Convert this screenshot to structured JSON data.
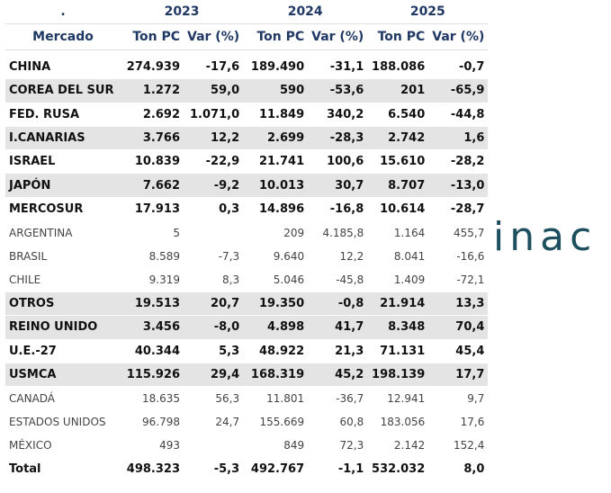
{
  "logo": "inac",
  "table": {
    "years": [
      ".",
      "2023",
      "2024",
      "2025"
    ],
    "columns": [
      "Mercado",
      "Ton PC",
      "Var (%)",
      "Ton PC",
      "Var (%)",
      "Ton PC",
      "Var (%)"
    ],
    "rows": [
      {
        "cells": [
          "CHINA",
          "274.939",
          "-17,6",
          "189.490",
          "-31,1",
          "188.086",
          "-0,7"
        ],
        "bold": true,
        "shaded": false
      },
      {
        "cells": [
          "COREA DEL SUR",
          "1.272",
          "59,0",
          "590",
          "-53,6",
          "201",
          "-65,9"
        ],
        "bold": true,
        "shaded": true
      },
      {
        "cells": [
          "FED. RUSA",
          "2.692",
          "1.071,0",
          "11.849",
          "340,2",
          "6.540",
          "-44,8"
        ],
        "bold": true,
        "shaded": false
      },
      {
        "cells": [
          "I.CANARIAS",
          "3.766",
          "12,2",
          "2.699",
          "-28,3",
          "2.742",
          "1,6"
        ],
        "bold": true,
        "shaded": true
      },
      {
        "cells": [
          "ISRAEL",
          "10.839",
          "-22,9",
          "21.741",
          "100,6",
          "15.610",
          "-28,2"
        ],
        "bold": true,
        "shaded": false
      },
      {
        "cells": [
          "JAPÓN",
          "7.662",
          "-9,2",
          "10.013",
          "30,7",
          "8.707",
          "-13,0"
        ],
        "bold": true,
        "shaded": true
      },
      {
        "cells": [
          "MERCOSUR",
          "17.913",
          "0,3",
          "14.896",
          "-16,8",
          "10.614",
          "-28,7"
        ],
        "bold": true,
        "shaded": false
      },
      {
        "cells": [
          "ARGENTINA",
          "5",
          null,
          "209",
          "4.185,8",
          "1.164",
          "455,7"
        ],
        "bold": false,
        "shaded": false
      },
      {
        "cells": [
          "BRASIL",
          "8.589",
          "-7,3",
          "9.640",
          "12,2",
          "8.041",
          "-16,6"
        ],
        "bold": false,
        "shaded": false
      },
      {
        "cells": [
          "CHILE",
          "9.319",
          "8,3",
          "5.046",
          "-45,8",
          "1.409",
          "-72,1"
        ],
        "bold": false,
        "shaded": false
      },
      {
        "cells": [
          "OTROS",
          "19.513",
          "20,7",
          "19.350",
          "-0,8",
          "21.914",
          "13,3"
        ],
        "bold": true,
        "shaded": true
      },
      {
        "cells": [
          "REINO UNIDO",
          "3.456",
          "-8,0",
          "4.898",
          "41,7",
          "8.348",
          "70,4"
        ],
        "bold": true,
        "shaded": true
      },
      {
        "cells": [
          "U.E.-27",
          "40.344",
          "5,3",
          "48.922",
          "21,3",
          "71.131",
          "45,4"
        ],
        "bold": true,
        "shaded": false
      },
      {
        "cells": [
          "USMCA",
          "115.926",
          "29,4",
          "168.319",
          "45,2",
          "198.139",
          "17,7"
        ],
        "bold": true,
        "shaded": true
      },
      {
        "cells": [
          "CANADÁ",
          "18.635",
          "56,3",
          "11.801",
          "-36,7",
          "12.941",
          "9,7"
        ],
        "bold": false,
        "shaded": false
      },
      {
        "cells": [
          "ESTADOS UNIDOS",
          "96.798",
          "24,7",
          "155.669",
          "60,8",
          "183.056",
          "17,6"
        ],
        "bold": false,
        "shaded": false
      },
      {
        "cells": [
          "MÉXICO",
          "493",
          null,
          "849",
          "72,3",
          "2.142",
          "152,4"
        ],
        "bold": false,
        "shaded": false
      },
      {
        "cells": [
          "Total",
          "498.323",
          "-5,3",
          "492.767",
          "-1,1",
          "532.032",
          "8,0"
        ],
        "bold": true,
        "shaded": false
      }
    ]
  }
}
